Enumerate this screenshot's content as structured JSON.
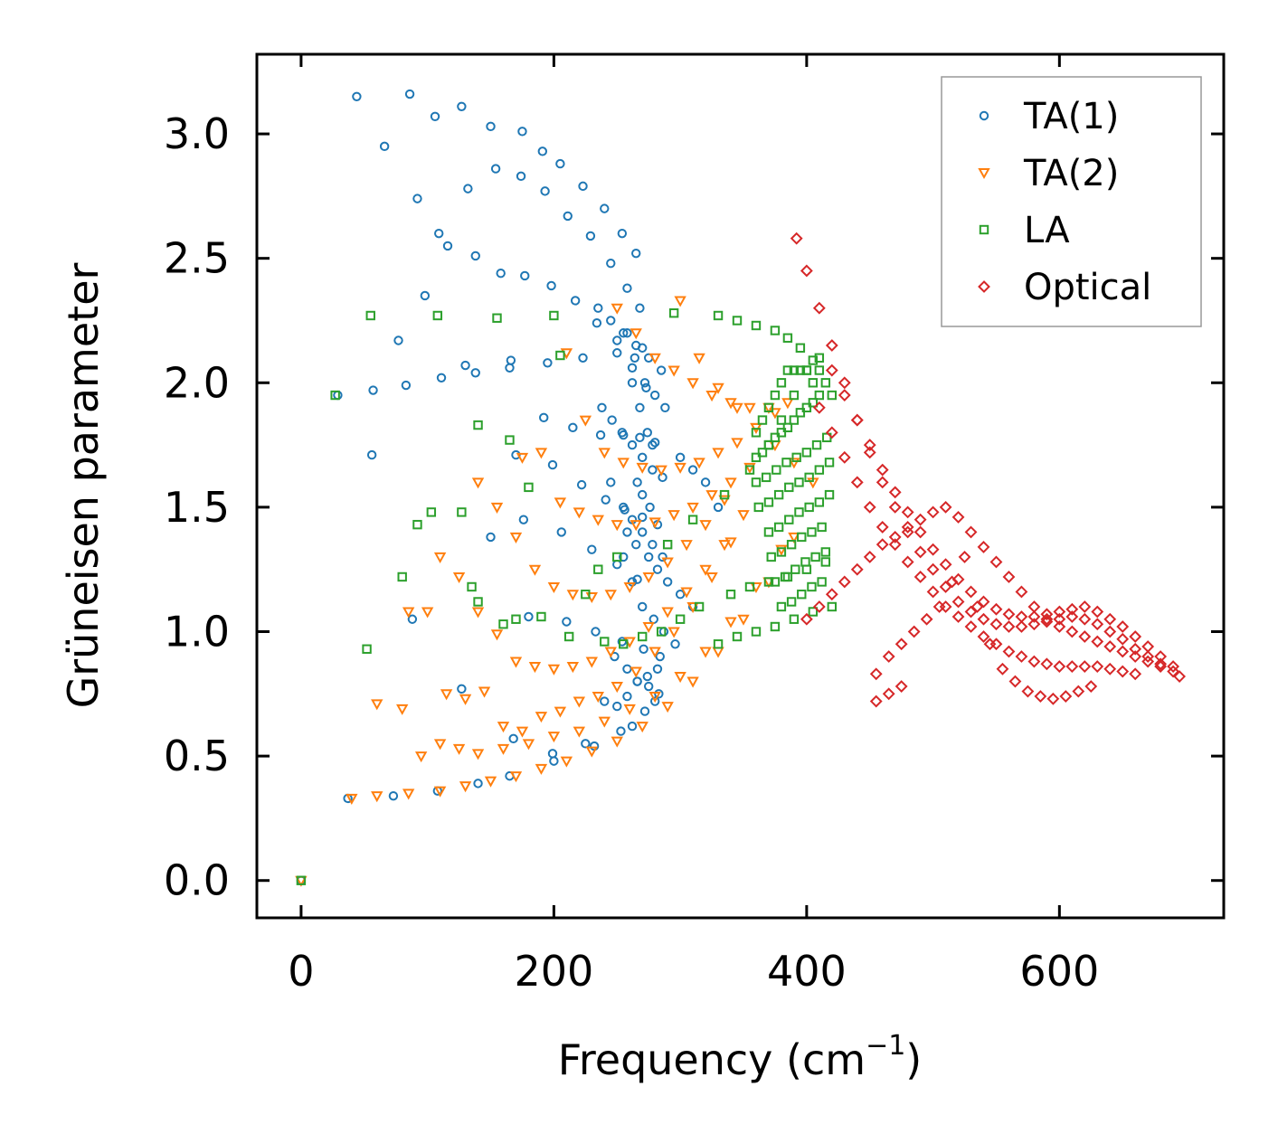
{
  "chart_data": {
    "type": "scatter",
    "title": "",
    "xlabel": "Frequency (cm",
    "xlabel_sup": "−1",
    "xlabel_close": ")",
    "ylabel": "Grüneisen parameter",
    "xlim": [
      -35,
      730
    ],
    "ylim": [
      -0.15,
      3.32
    ],
    "xticks": [
      0,
      200,
      400,
      600
    ],
    "xtick_labels": [
      "0",
      "200",
      "400",
      "600"
    ],
    "yticks": [
      0.0,
      0.5,
      1.0,
      1.5,
      2.0,
      2.5,
      3.0
    ],
    "ytick_labels": [
      "0.0",
      "0.5",
      "1.0",
      "1.5",
      "2.0",
      "2.5",
      "3.0"
    ],
    "legend_position": "top-right",
    "series": [
      {
        "name": "TA(1)",
        "marker": "circle",
        "color": "#1f77b4",
        "x": [
          0,
          37,
          73,
          108,
          140,
          165,
          200,
          232,
          262,
          280,
          29,
          57,
          83,
          111,
          138,
          165,
          195,
          223,
          250,
          270,
          56,
          88,
          127,
          168,
          199,
          225,
          253,
          272,
          44,
          86,
          106,
          127,
          150,
          175,
          191,
          205,
          223,
          240,
          254,
          265,
          66,
          92,
          109,
          132,
          154,
          174,
          193,
          211,
          229,
          245,
          258,
          268,
          77,
          98,
          116,
          138,
          158,
          177,
          198,
          217,
          234,
          250,
          262,
          273,
          130,
          166,
          192,
          215,
          237,
          255,
          268,
          280,
          170,
          199,
          222,
          241,
          256,
          270,
          282,
          150,
          176,
          206,
          230,
          250,
          266,
          180,
          210,
          233,
          254,
          271,
          284,
          262,
          268,
          274,
          278,
          266,
          270,
          276,
          258,
          264,
          272,
          280,
          288,
          300,
          310,
          320,
          330,
          258,
          265,
          275,
          282,
          290,
          300,
          310,
          255,
          262,
          270,
          279,
          287,
          296,
          248,
          258,
          266,
          275,
          283,
          245,
          255,
          262,
          270,
          278,
          286,
          240,
          250,
          258,
          266,
          274,
          282,
          238,
          246,
          254,
          262,
          270,
          278,
          286,
          235,
          245,
          255,
          265,
          275,
          285
        ],
        "y": [
          0.0,
          0.33,
          0.34,
          0.36,
          0.39,
          0.42,
          0.48,
          0.54,
          0.62,
          0.72,
          1.95,
          1.97,
          1.99,
          2.02,
          2.04,
          2.06,
          2.08,
          2.1,
          2.12,
          2.14,
          1.71,
          1.05,
          0.77,
          0.57,
          0.51,
          0.55,
          0.6,
          0.68,
          3.15,
          3.16,
          3.07,
          3.11,
          3.03,
          3.01,
          2.93,
          2.88,
          2.79,
          2.7,
          2.6,
          2.52,
          2.95,
          2.74,
          2.6,
          2.78,
          2.86,
          2.83,
          2.77,
          2.67,
          2.59,
          2.48,
          2.38,
          2.3,
          2.17,
          2.35,
          2.55,
          2.51,
          2.44,
          2.43,
          2.39,
          2.33,
          2.24,
          2.17,
          2.06,
          1.98,
          2.07,
          2.09,
          1.86,
          1.82,
          1.79,
          1.79,
          1.78,
          1.76,
          1.71,
          1.67,
          1.59,
          1.53,
          1.49,
          1.46,
          1.43,
          1.38,
          1.45,
          1.4,
          1.33,
          1.27,
          1.21,
          1.06,
          1.04,
          1.0,
          0.96,
          0.93,
          0.9,
          2.0,
          1.9,
          1.8,
          1.75,
          1.6,
          1.55,
          1.5,
          2.2,
          2.1,
          2.0,
          1.95,
          1.9,
          1.7,
          1.65,
          1.6,
          1.5,
          1.4,
          1.35,
          1.3,
          1.25,
          1.2,
          1.15,
          1.1,
          1.3,
          1.2,
          1.1,
          1.05,
          1.0,
          0.95,
          0.9,
          0.85,
          0.8,
          0.78,
          0.75,
          1.6,
          1.5,
          1.45,
          1.4,
          1.35,
          1.3,
          0.72,
          0.7,
          0.74,
          0.8,
          0.82,
          0.85,
          1.9,
          1.85,
          1.8,
          1.75,
          1.7,
          1.65,
          1.62,
          2.3,
          2.25,
          2.2,
          2.15,
          2.1,
          2.05
        ]
      },
      {
        "name": "TA(2)",
        "marker": "triangle-down",
        "color": "#ff7f0e",
        "x": [
          0,
          40,
          60,
          85,
          110,
          130,
          150,
          170,
          190,
          210,
          230,
          250,
          270,
          290,
          310,
          330,
          350,
          370,
          390,
          60,
          80,
          95,
          110,
          125,
          140,
          160,
          180,
          200,
          220,
          240,
          260,
          280,
          300,
          320,
          340,
          360,
          380,
          85,
          100,
          115,
          130,
          145,
          160,
          175,
          190,
          205,
          220,
          235,
          250,
          265,
          280,
          295,
          310,
          325,
          340,
          110,
          125,
          140,
          155,
          170,
          185,
          200,
          215,
          230,
          245,
          260,
          275,
          290,
          305,
          320,
          335,
          350,
          140,
          155,
          170,
          185,
          200,
          215,
          230,
          245,
          260,
          275,
          290,
          305,
          320,
          335,
          175,
          190,
          205,
          220,
          235,
          250,
          265,
          280,
          295,
          310,
          325,
          340,
          355,
          210,
          225,
          240,
          255,
          270,
          285,
          300,
          315,
          330,
          345,
          360,
          375,
          250,
          265,
          280,
          295,
          310,
          325,
          340,
          355,
          370,
          385,
          300,
          315,
          330,
          345,
          360,
          375,
          390,
          405
        ],
        "y": [
          0.0,
          0.33,
          0.34,
          0.35,
          0.36,
          0.38,
          0.4,
          0.42,
          0.45,
          0.48,
          0.52,
          0.56,
          0.62,
          0.7,
          0.8,
          0.92,
          1.05,
          1.2,
          1.38,
          0.71,
          0.69,
          0.5,
          0.55,
          0.53,
          0.51,
          0.53,
          0.55,
          0.58,
          0.6,
          0.64,
          0.69,
          0.74,
          0.82,
          0.92,
          1.04,
          1.18,
          1.33,
          1.08,
          1.08,
          0.75,
          0.73,
          0.76,
          0.62,
          0.6,
          0.66,
          0.68,
          0.72,
          0.74,
          0.78,
          0.84,
          0.92,
          1.0,
          1.1,
          1.22,
          1.36,
          1.3,
          1.22,
          1.08,
          0.99,
          0.88,
          0.86,
          0.85,
          0.86,
          0.88,
          0.92,
          0.96,
          1.02,
          1.08,
          1.16,
          1.25,
          1.35,
          1.47,
          1.6,
          1.5,
          1.38,
          1.25,
          1.18,
          1.15,
          1.14,
          1.15,
          1.18,
          1.22,
          1.28,
          1.35,
          1.43,
          1.53,
          1.7,
          1.72,
          1.52,
          1.48,
          1.45,
          1.43,
          1.43,
          1.44,
          1.47,
          1.5,
          1.55,
          1.6,
          1.66,
          2.12,
          1.85,
          1.72,
          1.68,
          1.66,
          1.65,
          1.66,
          1.68,
          1.72,
          1.76,
          1.82,
          1.88,
          2.3,
          2.2,
          2.1,
          2.05,
          2.0,
          1.95,
          1.92,
          1.9,
          1.9,
          1.92,
          2.33,
          2.1,
          1.98,
          1.9,
          1.82,
          1.75,
          1.68,
          1.6
        ]
      },
      {
        "name": "LA",
        "marker": "square",
        "color": "#2ca02c",
        "x": [
          0,
          27,
          52,
          55,
          80,
          92,
          103,
          108,
          127,
          135,
          140,
          155,
          160,
          170,
          180,
          190,
          200,
          212,
          225,
          240,
          255,
          270,
          285,
          295,
          300,
          315,
          330,
          345,
          360,
          375,
          385,
          395,
          405,
          410,
          415,
          420,
          140,
          165,
          205,
          235,
          250,
          290,
          310,
          335,
          355,
          370,
          380,
          390,
          400,
          410,
          360,
          365,
          370,
          375,
          380,
          385,
          390,
          395,
          400,
          405,
          360,
          365,
          370,
          375,
          380,
          385,
          390,
          395,
          400,
          405,
          410,
          360,
          368,
          376,
          384,
          392,
          400,
          408,
          416,
          362,
          370,
          378,
          386,
          394,
          402,
          410,
          418,
          370,
          378,
          386,
          394,
          402,
          410,
          418,
          372,
          380,
          388,
          396,
          404,
          412,
          375,
          383,
          391,
          399,
          407,
          415,
          380,
          388,
          396,
          404,
          412,
          330,
          345,
          360,
          375,
          390,
          405,
          420,
          340,
          355,
          370,
          385,
          400,
          415
        ],
        "y": [
          0.0,
          1.95,
          0.93,
          2.27,
          1.22,
          1.43,
          1.48,
          2.27,
          1.48,
          1.18,
          1.83,
          2.26,
          1.03,
          1.05,
          1.58,
          1.06,
          2.27,
          0.98,
          1.15,
          0.96,
          0.95,
          0.98,
          1.0,
          2.28,
          1.05,
          1.1,
          2.27,
          2.25,
          2.23,
          2.21,
          2.18,
          2.14,
          2.09,
          2.05,
          2.0,
          1.95,
          1.12,
          1.77,
          2.11,
          1.25,
          1.3,
          1.35,
          1.45,
          1.55,
          1.65,
          1.75,
          1.85,
          1.95,
          2.05,
          2.1,
          1.8,
          1.85,
          1.9,
          1.95,
          2.0,
          2.05,
          2.05,
          2.05,
          2.05,
          2.0,
          1.7,
          1.72,
          1.75,
          1.78,
          1.8,
          1.82,
          1.85,
          1.88,
          1.9,
          1.92,
          1.95,
          1.6,
          1.62,
          1.65,
          1.68,
          1.7,
          1.72,
          1.75,
          1.78,
          1.5,
          1.52,
          1.55,
          1.58,
          1.6,
          1.62,
          1.65,
          1.68,
          1.4,
          1.42,
          1.45,
          1.48,
          1.5,
          1.52,
          1.55,
          1.3,
          1.32,
          1.35,
          1.38,
          1.4,
          1.42,
          1.2,
          1.22,
          1.25,
          1.28,
          1.3,
          1.32,
          1.1,
          1.12,
          1.15,
          1.18,
          1.2,
          0.95,
          0.98,
          1.0,
          1.02,
          1.05,
          1.08,
          1.1,
          1.15,
          1.18,
          1.2,
          1.22,
          1.25,
          1.28
        ]
      },
      {
        "name": "Optical",
        "marker": "diamond",
        "color": "#d62728",
        "x": [
          392,
          400,
          410,
          420,
          430,
          440,
          450,
          460,
          470,
          480,
          490,
          500,
          510,
          520,
          530,
          540,
          550,
          560,
          570,
          580,
          590,
          600,
          610,
          620,
          630,
          640,
          650,
          660,
          670,
          680,
          690,
          695,
          420,
          430,
          440,
          450,
          460,
          470,
          480,
          490,
          500,
          510,
          520,
          530,
          540,
          550,
          560,
          570,
          580,
          590,
          600,
          610,
          620,
          630,
          640,
          650,
          660,
          670,
          680,
          690,
          410,
          420,
          430,
          440,
          450,
          460,
          470,
          480,
          490,
          500,
          510,
          520,
          530,
          540,
          550,
          560,
          570,
          580,
          590,
          600,
          610,
          620,
          630,
          640,
          650,
          660,
          400,
          410,
          420,
          430,
          440,
          450,
          460,
          470,
          480,
          490,
          500,
          510,
          520,
          530,
          540,
          550,
          560,
          570,
          580,
          590,
          600,
          610,
          620,
          630,
          640,
          650,
          660,
          670,
          680,
          455,
          465,
          475,
          455,
          465,
          475,
          485,
          495,
          505,
          515,
          525,
          535,
          545,
          555,
          565,
          575,
          585,
          595,
          605,
          615,
          625
        ],
        "y": [
          2.58,
          2.45,
          2.3,
          2.15,
          2.0,
          1.85,
          1.72,
          1.6,
          1.5,
          1.4,
          1.32,
          1.25,
          1.18,
          1.12,
          1.08,
          1.05,
          1.03,
          1.02,
          1.02,
          1.03,
          1.04,
          1.05,
          1.06,
          1.05,
          1.03,
          1.0,
          0.97,
          0.93,
          0.9,
          0.87,
          0.84,
          0.82,
          2.05,
          1.95,
          1.85,
          1.75,
          1.65,
          1.56,
          1.48,
          1.4,
          1.33,
          1.27,
          1.21,
          1.16,
          1.12,
          1.09,
          1.07,
          1.06,
          1.06,
          1.07,
          1.08,
          1.09,
          1.1,
          1.08,
          1.05,
          1.02,
          0.98,
          0.94,
          0.9,
          0.86,
          1.9,
          1.8,
          1.7,
          1.6,
          1.5,
          1.42,
          1.35,
          1.28,
          1.22,
          1.16,
          1.1,
          1.06,
          1.02,
          0.98,
          0.95,
          0.92,
          0.9,
          0.88,
          0.87,
          0.86,
          0.86,
          0.86,
          0.86,
          0.85,
          0.84,
          0.83,
          1.05,
          1.1,
          1.15,
          1.2,
          1.25,
          1.3,
          1.35,
          1.38,
          1.42,
          1.45,
          1.48,
          1.5,
          1.46,
          1.4,
          1.34,
          1.28,
          1.22,
          1.16,
          1.1,
          1.05,
          1.02,
          1.0,
          0.98,
          0.96,
          0.94,
          0.92,
          0.9,
          0.88,
          0.86,
          0.72,
          0.75,
          0.78,
          0.83,
          0.9,
          0.95,
          1.0,
          1.05,
          1.1,
          1.2,
          1.3,
          1.1,
          0.95,
          0.85,
          0.8,
          0.76,
          0.74,
          0.73,
          0.74,
          0.76,
          0.78
        ]
      }
    ]
  }
}
